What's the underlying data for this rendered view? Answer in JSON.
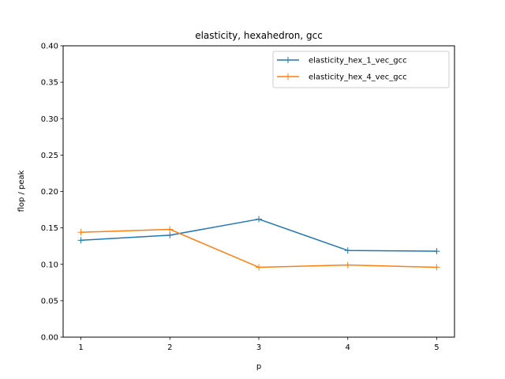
{
  "chart_data": {
    "type": "line",
    "title": "elasticity, hexahedron, gcc",
    "xlabel": "p",
    "ylabel": "flop / peak",
    "x": [
      1,
      2,
      3,
      4,
      5
    ],
    "xticks": [
      "1",
      "2",
      "3",
      "4",
      "5"
    ],
    "xlim": [
      0.8,
      5.2
    ],
    "ylim": [
      0.0,
      0.4
    ],
    "yticks": [
      "0.00",
      "0.05",
      "0.10",
      "0.15",
      "0.20",
      "0.25",
      "0.30",
      "0.35",
      "0.40"
    ],
    "grid": false,
    "legend_position": "top-right",
    "marker": "plus",
    "series": [
      {
        "name": "elasticity_hex_1_vec_gcc",
        "color": "#1f77b4",
        "values": [
          0.133,
          0.14,
          0.162,
          0.119,
          0.118
        ]
      },
      {
        "name": "elasticity_hex_4_vec_gcc",
        "color": "#ff7f0e",
        "values": [
          0.144,
          0.148,
          0.096,
          0.099,
          0.096
        ]
      }
    ]
  }
}
